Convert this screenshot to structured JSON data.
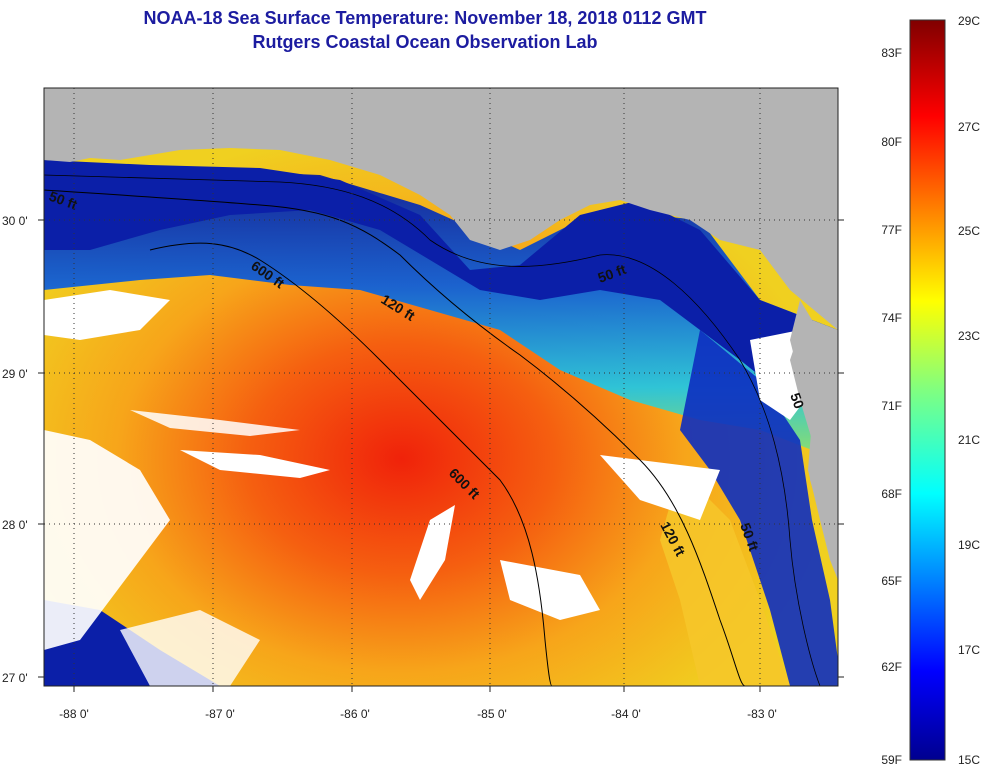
{
  "header": {
    "title": "NOAA-18 Sea Surface Temperature:  November 18, 2018 0112 GMT",
    "subtitle": "Rutgers Coastal Ocean Observation Lab"
  },
  "map": {
    "lat_ticks": [
      "30 0'",
      "29 0'",
      "28 0'",
      "27 0'"
    ],
    "lon_ticks": [
      "-88 0'",
      "-87 0'",
      "-86 0'",
      "-85 0'",
      "-84 0'",
      "-83 0'"
    ],
    "contour_labels": [
      "50 ft",
      "600 ft",
      "120 ft",
      "50 ft",
      "600 ft",
      "120 ft",
      "50 ft",
      "50"
    ],
    "colors": {
      "land": "#b4b4b4",
      "cloud": "#ffffff",
      "isobath": "#000000"
    }
  },
  "colorbar": {
    "fahrenheit_labels": [
      "83F",
      "80F",
      "77F",
      "74F",
      "71F",
      "68F",
      "65F",
      "62F",
      "59F"
    ],
    "celsius_labels": [
      "29C",
      "27C",
      "25C",
      "23C",
      "21C",
      "19C",
      "17C",
      "15C"
    ],
    "range_c": [
      15,
      29
    ],
    "colormap": "jet"
  }
}
